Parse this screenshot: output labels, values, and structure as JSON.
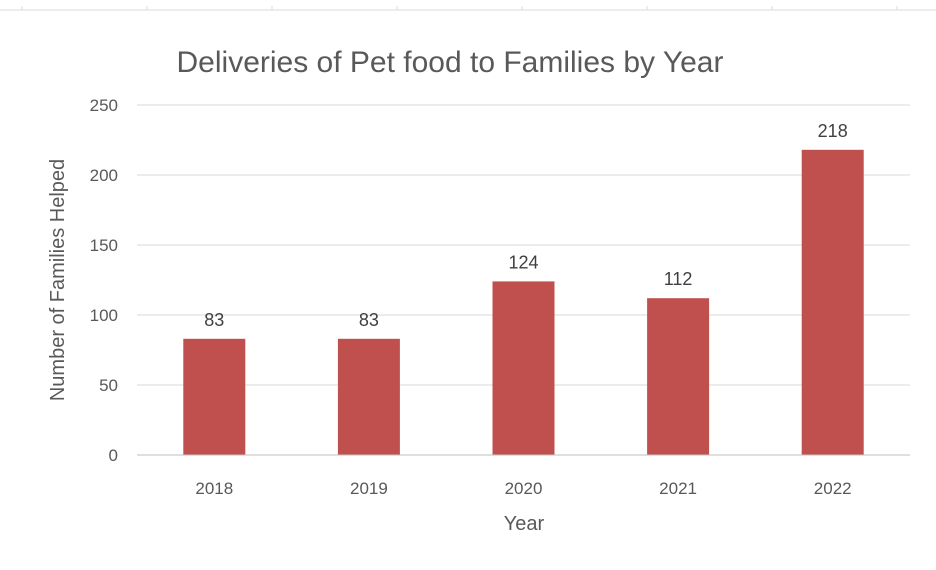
{
  "chart_data": {
    "type": "bar",
    "title": "Deliveries of Pet food to Families by Year",
    "xlabel": "Year",
    "ylabel": "Number of Families Helped",
    "categories": [
      "2018",
      "2019",
      "2020",
      "2021",
      "2022"
    ],
    "values": [
      83,
      83,
      124,
      112,
      218
    ],
    "data_labels": [
      "83",
      "83",
      "124",
      "112",
      "218"
    ],
    "ylim": [
      0,
      250
    ],
    "y_ticks": [
      0,
      50,
      100,
      150,
      200,
      250
    ],
    "y_tick_labels": [
      "0",
      "50",
      "100",
      "150",
      "200",
      "250"
    ],
    "grid": true,
    "legend": "none",
    "bar_color": "#c0504d"
  }
}
